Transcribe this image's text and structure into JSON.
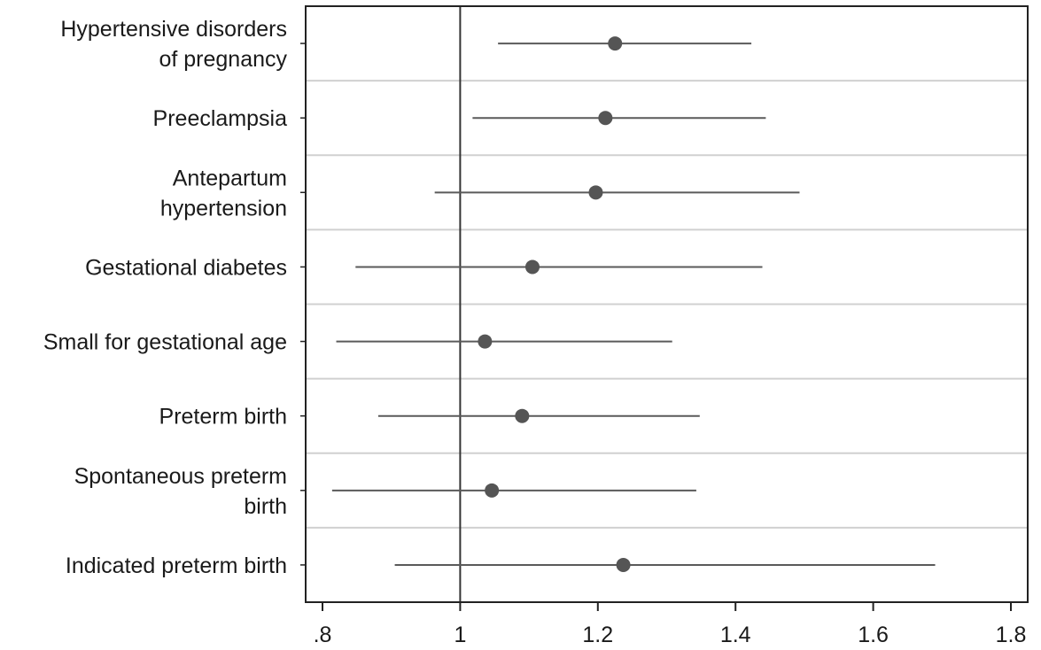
{
  "chart_data": {
    "type": "forest",
    "title": "",
    "xlabel": "",
    "ylabel": "",
    "xlim": [
      0.8,
      1.8
    ],
    "reference_line": 1,
    "xticks": [
      {
        "value": 0.8,
        "label": ".8"
      },
      {
        "value": 1.0,
        "label": "1"
      },
      {
        "value": 1.2,
        "label": "1.2"
      },
      {
        "value": 1.4,
        "label": "1.4"
      },
      {
        "value": 1.6,
        "label": "1.6"
      },
      {
        "value": 1.8,
        "label": "1.8"
      }
    ],
    "rows": [
      {
        "label_lines": [
          "Hypertensive disorders",
          "of pregnancy"
        ],
        "estimate": 1.225,
        "lower": 1.055,
        "upper": 1.423
      },
      {
        "label_lines": [
          "Preeclampsia"
        ],
        "estimate": 1.211,
        "lower": 1.018,
        "upper": 1.444
      },
      {
        "label_lines": [
          "Antepartum",
          "hypertension"
        ],
        "estimate": 1.197,
        "lower": 0.963,
        "upper": 1.493
      },
      {
        "label_lines": [
          "Gestational diabetes"
        ],
        "estimate": 1.105,
        "lower": 0.848,
        "upper": 1.439
      },
      {
        "label_lines": [
          "Small for gestational age"
        ],
        "estimate": 1.036,
        "lower": 0.82,
        "upper": 1.308
      },
      {
        "label_lines": [
          "Preterm birth"
        ],
        "estimate": 1.09,
        "lower": 0.881,
        "upper": 1.348
      },
      {
        "label_lines": [
          "Spontaneous preterm",
          "birth"
        ],
        "estimate": 1.046,
        "lower": 0.814,
        "upper": 1.343
      },
      {
        "label_lines": [
          "Indicated preterm birth"
        ],
        "estimate": 1.237,
        "lower": 0.905,
        "upper": 1.69
      }
    ],
    "colors": {
      "marker": "#555555",
      "ci_line": "#5a5a5a",
      "reference_line": "#333333",
      "frame": "#222222",
      "separator": "#d0d0d0",
      "text": "#1a1a1a"
    },
    "grid": false,
    "legend": "none"
  }
}
